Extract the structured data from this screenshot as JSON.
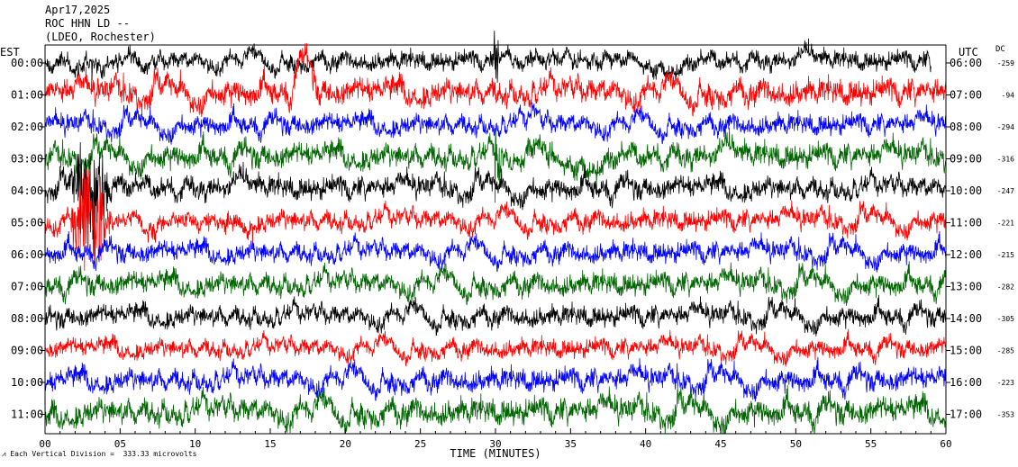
{
  "header": {
    "date": "Apr17,2025",
    "station": "ROC HHN LD --",
    "network": "(LDEO, Rochester)"
  },
  "footer": {
    "scale_note": "Each Vertical Division =  333.33 microvolts"
  },
  "chart_data": {
    "type": "line",
    "subtype": "helicorder",
    "xlabel": "TIME (MINUTES)",
    "xlim": [
      0,
      60
    ],
    "x_ticks": [
      "00",
      "05",
      "10",
      "15",
      "20",
      "25",
      "30",
      "35",
      "40",
      "45",
      "50",
      "55",
      "60"
    ],
    "x_minor_tick_step_minutes": 1,
    "left_axis_label": "EST",
    "right_axis_label": "UTC",
    "dc_label": "DC",
    "row_colors": [
      "#000000",
      "#ff0000",
      "#0000ff",
      "#006400"
    ],
    "rows": [
      {
        "est": "00:00",
        "utc": "06:00",
        "dc": "-259",
        "color": "#000000",
        "amplitude": 0.55,
        "end_minute": 59
      },
      {
        "est": "01:00",
        "utc": "07:00",
        "dc": "-94",
        "color": "#ff0000",
        "amplitude": 0.75
      },
      {
        "est": "02:00",
        "utc": "08:00",
        "dc": "-294",
        "color": "#0000ff",
        "amplitude": 0.6
      },
      {
        "est": "03:00",
        "utc": "09:00",
        "dc": "-316",
        "color": "#006400",
        "amplitude": 0.7
      },
      {
        "est": "04:00",
        "utc": "10:00",
        "dc": "-247",
        "color": "#000000",
        "amplitude": 0.65
      },
      {
        "est": "05:00",
        "utc": "11:00",
        "dc": "-221",
        "color": "#ff0000",
        "amplitude": 0.6
      },
      {
        "est": "06:00",
        "utc": "12:00",
        "dc": "-215",
        "color": "#0000ff",
        "amplitude": 0.6
      },
      {
        "est": "07:00",
        "utc": "13:00",
        "dc": "-282",
        "color": "#006400",
        "amplitude": 0.65
      },
      {
        "est": "08:00",
        "utc": "14:00",
        "dc": "-305",
        "color": "#000000",
        "amplitude": 0.6
      },
      {
        "est": "09:00",
        "utc": "15:00",
        "dc": "-285",
        "color": "#ff0000",
        "amplitude": 0.55
      },
      {
        "est": "10:00",
        "utc": "16:00",
        "dc": "-223",
        "color": "#0000ff",
        "amplitude": 0.65
      },
      {
        "est": "11:00",
        "utc": "17:00",
        "dc": "-353",
        "color": "#006400",
        "amplitude": 0.75
      }
    ],
    "events": [
      {
        "row": 1,
        "minute_start": 16.3,
        "minute_end": 18.2,
        "type": "swell",
        "height": 1.0
      },
      {
        "row": 2,
        "minute_start": 32.0,
        "minute_end": 33.0,
        "type": "bump",
        "height": 0.4
      },
      {
        "row": 4,
        "minute_start": 1.5,
        "minute_end": 4.5,
        "type": "burst",
        "height": 1.6
      },
      {
        "row": 5,
        "minute_start": 1.5,
        "minute_end": 4.5,
        "type": "burst",
        "height": 1.6
      },
      {
        "row": 0,
        "minute_start": 29.9,
        "minute_end": 30.2,
        "type": "spike",
        "height": 0.9
      },
      {
        "row": 3,
        "minute_start": 29.9,
        "minute_end": 30.3,
        "type": "spike",
        "height": 1.2
      }
    ]
  }
}
